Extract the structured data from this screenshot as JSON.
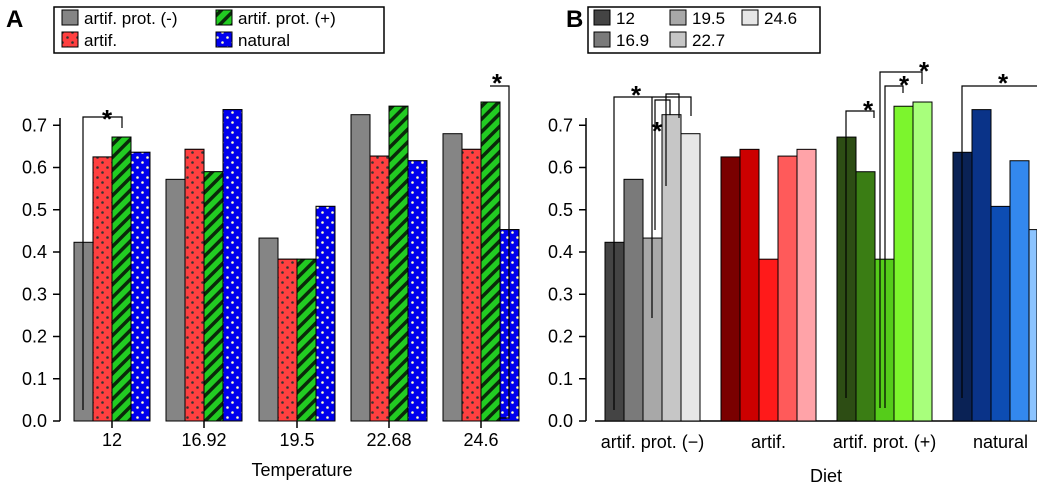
{
  "chart_data": [
    {
      "panel": "A",
      "type": "bar",
      "xlabel": "Temperature",
      "ylabel": "",
      "ylim": [
        0,
        0.8
      ],
      "yticks": [
        "0.0",
        "0.1",
        "0.2",
        "0.3",
        "0.4",
        "0.5",
        "0.6",
        "0.7"
      ],
      "categories": [
        "12",
        "16.92",
        "19.5",
        "22.68",
        "24.6"
      ],
      "series": [
        {
          "name": "artif. prot. (-)",
          "color": "#858585",
          "pattern": "solid",
          "values": [
            0.423,
            0.572,
            0.433,
            0.725,
            0.68
          ]
        },
        {
          "name": "artif.",
          "color": "#ff4040",
          "pattern": "dots",
          "values": [
            0.625,
            0.643,
            0.383,
            0.627,
            0.643
          ]
        },
        {
          "name": "artif. prot. (+)",
          "color": "#22cc22",
          "pattern": "stripes",
          "values": [
            0.672,
            0.59,
            0.383,
            0.745,
            0.755
          ]
        },
        {
          "name": "natural",
          "color": "#0000ee",
          "pattern": "dots-white",
          "values": [
            0.636,
            0.737,
            0.508,
            0.616,
            0.453
          ]
        }
      ],
      "legend_position": "top",
      "annotations": [
        "*",
        "*"
      ]
    },
    {
      "panel": "B",
      "type": "bar",
      "xlabel": "Diet",
      "ylabel": "",
      "ylim": [
        0,
        0.8
      ],
      "yticks": [
        "0.0",
        "0.1",
        "0.2",
        "0.3",
        "0.4",
        "0.5",
        "0.6",
        "0.7"
      ],
      "categories": [
        "artif. prot. (−)",
        "artif.",
        "artif. prot. (+)",
        "natural"
      ],
      "series": [
        {
          "name": "12",
          "values": [
            0.423,
            0.625,
            0.672,
            0.636
          ]
        },
        {
          "name": "16.9",
          "values": [
            0.572,
            0.643,
            0.59,
            0.737
          ]
        },
        {
          "name": "19.5",
          "values": [
            0.433,
            0.383,
            0.383,
            0.508
          ]
        },
        {
          "name": "22.7",
          "values": [
            0.725,
            0.627,
            0.745,
            0.616
          ]
        },
        {
          "name": "24.6",
          "values": [
            0.68,
            0.643,
            0.755,
            0.453
          ]
        }
      ],
      "group_colors": [
        [
          "#444444",
          "#7a7a7a",
          "#a8a8a8",
          "#c6c6c6",
          "#e6e6e6"
        ],
        [
          "#7a0000",
          "#cc0000",
          "#ff1a1a",
          "#ff5a5a",
          "#ffa3a8"
        ],
        [
          "#2d4d14",
          "#3a7d14",
          "#55cc1a",
          "#7cf52d",
          "#a8ff7c"
        ],
        [
          "#0a2255",
          "#0a3388",
          "#0d4db3",
          "#3388ee",
          "#8cc4ff"
        ]
      ],
      "legend_colors": [
        "#444444",
        "#7a7a7a",
        "#a8a8a8",
        "#c6c6c6",
        "#e6e6e6"
      ],
      "legend_position": "top",
      "annotations": [
        "*",
        "*",
        "*",
        "*",
        "*",
        "*"
      ]
    }
  ]
}
